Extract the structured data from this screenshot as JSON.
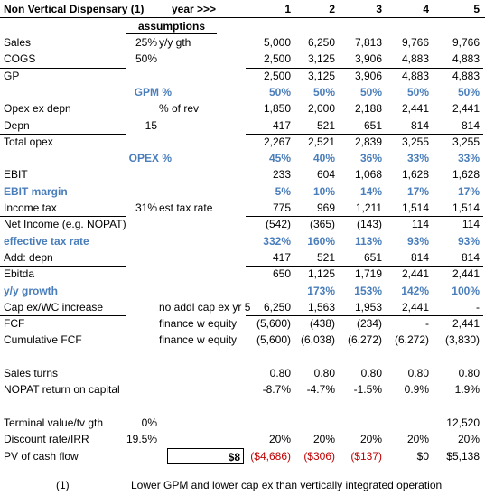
{
  "header": {
    "title": "Non Vertical Dispensary (1)",
    "year_label": "year >>>",
    "years": [
      1,
      2,
      3,
      4,
      5
    ]
  },
  "assumptions_label": "assumptions",
  "rows": [
    {
      "label": "Sales",
      "assumption": "25%",
      "note": "y/y gth",
      "values": [
        "5,000",
        "6,250",
        "7,813",
        "9,766",
        "9,766"
      ]
    },
    {
      "label": "COGS",
      "assumption": "50%",
      "values": [
        "2,500",
        "3,125",
        "3,906",
        "4,883",
        "4,883"
      ]
    },
    {
      "label": "GP",
      "values": [
        "2,500",
        "3,125",
        "3,906",
        "4,883",
        "4,883"
      ]
    },
    {
      "label": "GPM %",
      "values": [
        "50%",
        "50%",
        "50%",
        "50%",
        "50%"
      ]
    },
    {
      "label": "Opex ex depn",
      "note": "% of rev",
      "values": [
        "1,850",
        "2,000",
        "2,188",
        "2,441",
        "2,441"
      ]
    },
    {
      "label": "Depn",
      "assumption": "15",
      "values": [
        "417",
        "521",
        "651",
        "814",
        "814"
      ]
    },
    {
      "label": "Total opex",
      "values": [
        "2,267",
        "2,521",
        "2,839",
        "3,255",
        "3,255"
      ]
    },
    {
      "label": "OPEX %",
      "values": [
        "45%",
        "40%",
        "36%",
        "33%",
        "33%"
      ]
    },
    {
      "label": "EBIT",
      "values": [
        "233",
        "604",
        "1,068",
        "1,628",
        "1,628"
      ]
    },
    {
      "label": "EBIT margin",
      "values": [
        "5%",
        "10%",
        "14%",
        "17%",
        "17%"
      ]
    },
    {
      "label": "Income tax",
      "assumption": "31%",
      "note": "est tax rate",
      "values": [
        "775",
        "969",
        "1,211",
        "1,514",
        "1,514"
      ]
    },
    {
      "label": "Net Income (e.g. NOPAT)",
      "values": [
        "(542)",
        "(365)",
        "(143)",
        "114",
        "114"
      ]
    },
    {
      "label": "effective tax rate",
      "values": [
        "332%",
        "160%",
        "113%",
        "93%",
        "93%"
      ]
    },
    {
      "label": "Add: depn",
      "values": [
        "417",
        "521",
        "651",
        "814",
        "814"
      ]
    },
    {
      "label": "Ebitda",
      "values": [
        "650",
        "1,125",
        "1,719",
        "2,441",
        "2,441"
      ]
    },
    {
      "label": "y/y growth",
      "values": [
        null,
        "173%",
        "153%",
        "142%",
        "100%"
      ]
    },
    {
      "label": "Cap ex/WC increase",
      "note": "no addl cap ex yr 5",
      "values": [
        "6,250",
        "1,563",
        "1,953",
        "2,441",
        "-"
      ]
    },
    {
      "label": "FCF",
      "note": "finance w equity",
      "values": [
        "(5,600)",
        "(438)",
        "(234)",
        "-",
        "2,441"
      ]
    },
    {
      "label": "Cumulative FCF",
      "note": "finance w equity",
      "values": [
        "(5,600)",
        "(6,038)",
        "(6,272)",
        "(6,272)",
        "(3,830)"
      ]
    },
    {
      "label": "Sales turns",
      "values": [
        "0.80",
        "0.80",
        "0.80",
        "0.80",
        "0.80"
      ]
    },
    {
      "label": "NOPAT return on capital",
      "values": [
        "-8.7%",
        "-4.7%",
        "-1.5%",
        "0.9%",
        "1.9%"
      ]
    },
    {
      "label": "Terminal value/tv gth",
      "assumption": "0%",
      "values": [
        null,
        null,
        null,
        null,
        "12,520"
      ]
    },
    {
      "label": "Discount rate/IRR",
      "assumption": "19.5%",
      "values": [
        "20%",
        "20%",
        "20%",
        "20%",
        "20%"
      ]
    },
    {
      "label": "PV of cash flow",
      "note": "$8",
      "values": [
        "($4,686)",
        "($306)",
        "($137)",
        "$0",
        "$5,138"
      ]
    }
  ],
  "footnote": {
    "marker": "(1)",
    "text": "Lower GPM and lower cap ex than vertically integrated operation"
  }
}
